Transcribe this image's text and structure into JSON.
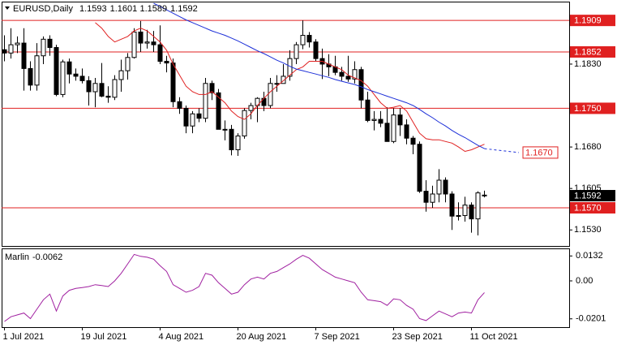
{
  "chart_data": {
    "type": "candlestick",
    "symbol": "EURUSD,Daily",
    "categories": [
      "1 Jul 2021",
      null,
      null,
      null,
      null,
      null,
      null,
      null,
      null,
      null,
      null,
      null,
      "19 Jul 2021",
      null,
      null,
      null,
      null,
      null,
      null,
      null,
      null,
      null,
      null,
      null,
      "4 Aug 2021",
      null,
      null,
      null,
      null,
      null,
      null,
      null,
      null,
      null,
      null,
      null,
      "20 Aug 2021",
      null,
      null,
      null,
      null,
      null,
      null,
      null,
      null,
      null,
      null,
      null,
      "7 Sep 2021",
      null,
      null,
      null,
      null,
      null,
      null,
      null,
      null,
      null,
      null,
      null,
      "23 Sep 2021",
      null,
      null,
      null,
      null,
      null,
      null,
      null,
      null,
      null,
      null,
      null,
      "11 Oct 2021",
      null,
      null
    ],
    "open": [
      1.1856,
      1.185,
      1.1865,
      1.1868,
      1.1822,
      1.1792,
      1.1845,
      1.1875,
      1.186,
      1.1775,
      1.1834,
      1.1812,
      1.1808,
      1.18,
      1.178,
      1.1795,
      1.1772,
      1.177,
      1.1802,
      1.1818,
      1.1842,
      1.1888,
      1.1868,
      1.187,
      1.1865,
      1.1835,
      1.1832,
      1.1762,
      1.175,
      1.1718,
      1.174,
      1.1732,
      1.1795,
      1.1778,
      1.1712,
      1.1712,
      1.1675,
      1.17,
      1.1746,
      1.1755,
      1.1768,
      1.1755,
      1.1795,
      1.1795,
      1.1808,
      1.184,
      1.1865,
      1.1882,
      1.187,
      1.184,
      1.183,
      1.1825,
      1.1815,
      1.1808,
      1.1803,
      1.182,
      1.1765,
      1.1728,
      1.173,
      1.1723,
      1.169,
      1.1738,
      1.172,
      1.1696,
      1.1685,
      1.16,
      1.158,
      1.1595,
      1.162,
      1.1595,
      1.1555,
      1.1556,
      1.1575,
      1.155,
      1.1593
    ],
    "high": [
      1.1882,
      1.1895,
      1.188,
      1.1895,
      1.1835,
      1.1868,
      1.188,
      1.1882,
      1.1865,
      1.1838,
      1.184,
      1.1822,
      1.1822,
      1.1808,
      1.1805,
      1.1832,
      1.179,
      1.181,
      1.1838,
      1.185,
      1.1895,
      1.1908,
      1.1892,
      1.189,
      1.19,
      1.1845,
      1.184,
      1.177,
      1.1755,
      1.1745,
      1.175,
      1.1805,
      1.18,
      1.1785,
      1.1728,
      1.172,
      1.1705,
      1.175,
      1.176,
      1.177,
      1.178,
      1.1805,
      1.181,
      1.183,
      1.1855,
      1.187,
      1.1909,
      1.1888,
      1.1875,
      1.1858,
      1.1848,
      1.1845,
      1.1825,
      1.1845,
      1.1835,
      1.1825,
      1.178,
      1.1745,
      1.1745,
      1.1752,
      1.175,
      1.175,
      1.173,
      1.17,
      1.169,
      1.162,
      1.161,
      1.164,
      1.1625,
      1.16,
      1.158,
      1.159,
      1.158,
      1.16,
      1.1601
    ],
    "low": [
      1.1835,
      1.184,
      1.185,
      1.1782,
      1.1782,
      1.1782,
      1.183,
      1.1845,
      1.1772,
      1.177,
      1.1795,
      1.18,
      1.1795,
      1.1755,
      1.1752,
      1.177,
      1.176,
      1.1765,
      1.178,
      1.1802,
      1.184,
      1.1852,
      1.1858,
      1.1852,
      1.183,
      1.1815,
      1.1752,
      1.174,
      1.1705,
      1.1705,
      1.1725,
      1.1725,
      1.1765,
      1.1712,
      1.1692,
      1.1665,
      1.1664,
      1.1695,
      1.173,
      1.1725,
      1.1745,
      1.175,
      1.178,
      1.1795,
      1.18,
      1.183,
      1.1857,
      1.186,
      1.1835,
      1.1803,
      1.1808,
      1.181,
      1.18,
      1.1798,
      1.1795,
      1.175,
      1.1725,
      1.171,
      1.1716,
      1.169,
      1.1687,
      1.17,
      1.1685,
      1.1667,
      1.1597,
      1.1563,
      1.157,
      1.158,
      1.158,
      1.153,
      1.1547,
      1.1545,
      1.1525,
      1.152,
      1.1589
    ],
    "close": [
      1.185,
      1.1865,
      1.1868,
      1.1822,
      1.1792,
      1.1845,
      1.1875,
      1.186,
      1.1775,
      1.1834,
      1.1812,
      1.1808,
      1.18,
      1.178,
      1.1795,
      1.1772,
      1.177,
      1.1802,
      1.1818,
      1.1842,
      1.1888,
      1.1868,
      1.187,
      1.1865,
      1.1835,
      1.1832,
      1.1762,
      1.175,
      1.1718,
      1.174,
      1.1732,
      1.1795,
      1.1778,
      1.1712,
      1.1712,
      1.1675,
      1.17,
      1.1746,
      1.1755,
      1.1768,
      1.1755,
      1.1795,
      1.1795,
      1.1808,
      1.184,
      1.1865,
      1.1882,
      1.187,
      1.184,
      1.183,
      1.1825,
      1.1815,
      1.1808,
      1.1803,
      1.182,
      1.1765,
      1.1728,
      1.173,
      1.1723,
      1.169,
      1.1738,
      1.172,
      1.1696,
      1.1685,
      1.16,
      1.158,
      1.1595,
      1.162,
      1.1595,
      1.1555,
      1.1556,
      1.1575,
      1.155,
      1.1597,
      1.1592
    ],
    "up_color": "#ffffff",
    "down_color": "#000000",
    "ylim": [
      1.1501,
      1.1943
    ],
    "yticks": [
      {
        "value": 1.183,
        "label": "1.1830"
      },
      {
        "value": 1.168,
        "label": "1.1680"
      },
      1.1605,
      {
        "value": 1.153,
        "label": "1.1530"
      }
    ],
    "overlays": [
      {
        "color": "#e02020",
        "values": [
          null,
          null,
          null,
          null,
          null,
          null,
          null,
          null,
          null,
          null,
          null,
          null,
          null,
          null,
          1.1905,
          1.1895,
          1.188,
          1.187,
          1.1875,
          1.188,
          1.189,
          1.1895,
          1.189,
          1.188,
          1.187,
          1.1855,
          1.183,
          1.181,
          1.179,
          1.178,
          1.1775,
          1.1775,
          1.178,
          1.177,
          1.176,
          1.1745,
          1.1735,
          1.173,
          1.174,
          1.1755,
          1.1768,
          1.178,
          1.179,
          1.18,
          1.181,
          1.182,
          1.1825,
          1.1835,
          1.1835,
          1.1835,
          1.183,
          1.1825,
          1.182,
          1.181,
          1.1805,
          1.18,
          1.179,
          1.1775,
          1.176,
          1.175,
          1.1752,
          1.1755,
          1.1745,
          1.1725,
          1.1705,
          1.1695,
          1.1693,
          1.1693,
          1.169,
          1.1687,
          1.168,
          1.1672,
          1.1675,
          1.168,
          1.1685
        ]
      },
      {
        "color": "#1c2fd8",
        "values": [
          null,
          null,
          null,
          null,
          null,
          null,
          null,
          null,
          null,
          null,
          null,
          null,
          null,
          null,
          null,
          null,
          null,
          null,
          null,
          null,
          null,
          null,
          null,
          1.194,
          1.1934,
          1.1928,
          1.1922,
          1.1916,
          1.191,
          1.1905,
          1.19,
          1.1895,
          1.189,
          1.1886,
          1.1882,
          1.1877,
          1.1872,
          1.1866,
          1.186,
          1.1854,
          1.1849,
          1.1843,
          1.1837,
          1.1832,
          1.1826,
          1.1821,
          1.1818,
          1.1815,
          1.1812,
          1.1809,
          1.1806,
          1.1802,
          1.1799,
          1.1796,
          1.1793,
          1.1789,
          1.1784,
          1.178,
          1.1776,
          1.1772,
          1.1768,
          1.1764,
          1.176,
          1.1755,
          1.1748,
          1.174,
          1.1733,
          1.1725,
          1.1718,
          1.171,
          1.1703,
          1.1697,
          1.169,
          1.1683,
          1.1677
        ]
      }
    ],
    "levels": [
      {
        "value": 1.1909,
        "label": "1.1909"
      },
      {
        "value": 1.1852,
        "label": "1.1852"
      },
      {
        "value": 1.175,
        "label": "1.1750"
      },
      {
        "value": 1.157,
        "label": "1.1570"
      }
    ],
    "level_color": "#e02020",
    "projection": {
      "value": 1.167,
      "label": "1.1670"
    },
    "indicator": {
      "name": "Marlin",
      "color": "#a020a0",
      "values": [
        -0.0215,
        -0.019,
        -0.018,
        -0.017,
        -0.02,
        -0.015,
        -0.01,
        -0.007,
        -0.016,
        -0.008,
        -0.005,
        -0.004,
        -0.0035,
        -0.003,
        -0.002,
        -0.0025,
        -0.003,
        0.0,
        0.004,
        0.009,
        0.014,
        0.013,
        0.0125,
        0.0115,
        0.008,
        0.005,
        -0.002,
        -0.004,
        -0.006,
        -0.005,
        -0.003,
        0.004,
        0.003,
        -0.001,
        -0.004,
        -0.007,
        -0.006,
        -0.002,
        0.001,
        0.002,
        0.001,
        0.004,
        0.005,
        0.007,
        0.009,
        0.0115,
        0.0135,
        0.012,
        0.009,
        0.006,
        0.004,
        0.002,
        0.001,
        0.0,
        -0.001,
        -0.006,
        -0.01,
        -0.0105,
        -0.011,
        -0.013,
        -0.0095,
        -0.01,
        -0.013,
        -0.015,
        -0.02,
        -0.021,
        -0.0185,
        -0.016,
        -0.0175,
        -0.019,
        -0.017,
        -0.0165,
        -0.017,
        -0.01,
        -0.0062
      ],
      "ylim": [
        -0.0245,
        0.0172
      ],
      "yticks": [
        0.0132,
        {
          "value": 0,
          "label": "0.00"
        },
        -0.0201
      ]
    }
  }
}
